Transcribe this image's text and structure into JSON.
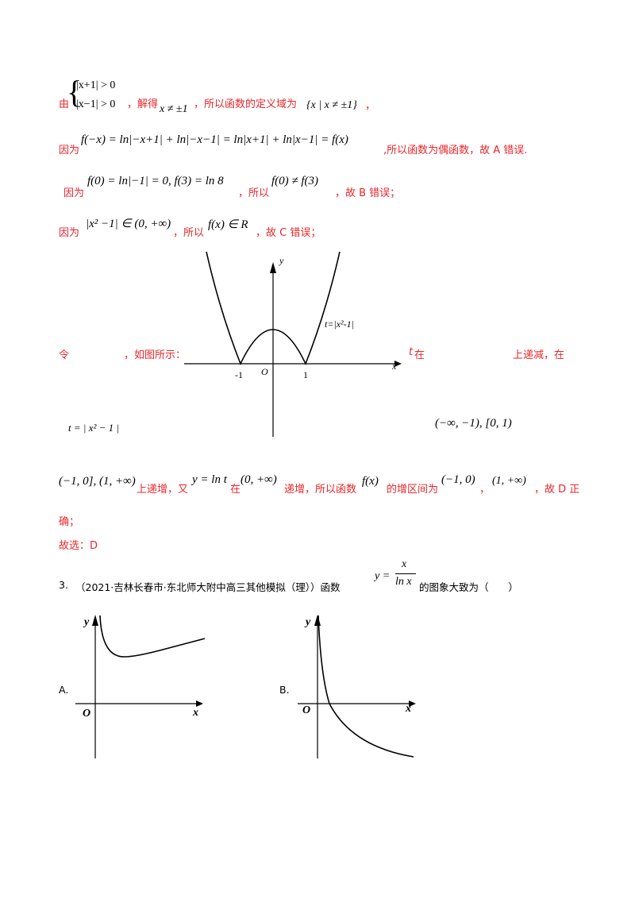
{
  "solution": {
    "line1": {
      "prefix": "由",
      "sys_row1": "|x+1| > 0",
      "sys_row2": "|x−1| > 0",
      "mid": "，解得",
      "math1": "x ≠ ±1",
      "mid2": "，所以函数的定义域为",
      "math2": "{x | x ≠ ±1}",
      "end": "，"
    },
    "line2": {
      "prefix": "因为",
      "math": "f(−x) = ln|−x+1| + ln|−x−1| = ln|x+1| + ln|x−1| = f(x)",
      "text": ",所以函数为偶函数，故 A 错误."
    },
    "line3": {
      "prefix": "因为",
      "math": "f(0) = ln|−1| = 0, f(3) = ln 8",
      "mid": "，所以",
      "math2": "f(0) ≠ f(3)",
      "end": "，故 B 错误；"
    },
    "line4": {
      "prefix": "因为",
      "math": "|x² −1| ∈ (0, +∞)",
      "mid": "，所以",
      "math2": "f(x) ∈ R",
      "end": "，故 C 错误；"
    },
    "line5": {
      "prefix": "令",
      "mid": "，如图所示：",
      "t_sym": "t",
      "t_in": "在",
      "end": "上递减，在"
    },
    "line5_math": {
      "t_def": "t = | x² − 1 |",
      "intervals": "(−∞, −1), [0, 1)"
    },
    "line6": {
      "math1": "(−1, 0], (1, +∞)",
      "text1": "上递增，又",
      "math2": "y = ln t",
      "text2": "在",
      "math3": "(0, +∞)",
      "text3": "递增，所以函数",
      "math4": "f(x)",
      "text4": "的增区间为",
      "math5": "(−1, 0)",
      "sep": "，",
      "math6": "(1, +∞)",
      "text5": "，故 D 正"
    },
    "line7": "确；",
    "line8": "故选：D"
  },
  "graph1": {
    "y_label": "y",
    "x_label": "x",
    "origin_label": "O",
    "tick_left": "-1",
    "tick_right": "1",
    "curve_label": "t=|x²-1|"
  },
  "question": {
    "number": "3.",
    "source": "（2021·吉林长春市·东北师大附中高三其他模拟（理））函数",
    "func_lhs": "y =",
    "func_num": "x",
    "func_den": "ln x",
    "tail": "的图象大致为（　　）"
  },
  "options": {
    "A": {
      "label": "A.",
      "y_label": "y",
      "x_label": "x",
      "origin_label": "O"
    },
    "B": {
      "label": "B.",
      "y_label": "y",
      "x_label": "x",
      "origin_label": "O"
    }
  }
}
